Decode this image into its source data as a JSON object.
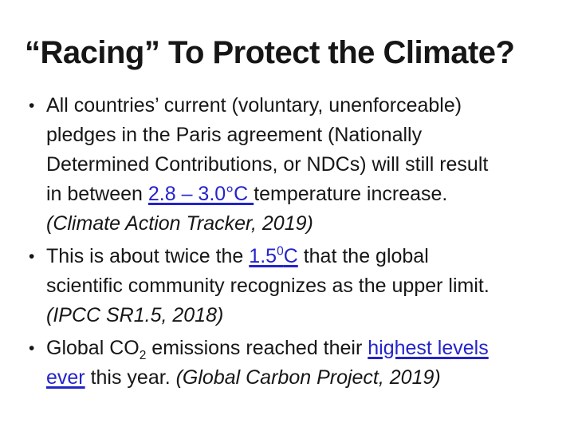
{
  "slide": {
    "title": "“Racing” To Protect the Climate?",
    "bullet_char": "•",
    "colors": {
      "background": "#ffffff",
      "text": "#161616",
      "link": "#2424cb"
    },
    "bullets": [
      {
        "lines": [
          [
            {
              "t": "All countries’ current (voluntary, unenforceable)"
            }
          ],
          [
            {
              "t": "pledges in the Paris agreement (Nationally"
            }
          ],
          [
            {
              "t": "Determined Contributions, or NDCs) will still result"
            }
          ],
          [
            {
              "t": "in between "
            },
            {
              "t": "2.8 – 3.0°C ",
              "s": "link",
              "name": "link-temperature-range"
            },
            {
              "t": "temperature increase."
            }
          ],
          [
            {
              "t": "(Climate Action Tracker, 2019)",
              "s": "italic"
            }
          ]
        ]
      },
      {
        "lines": [
          [
            {
              "t": "This is about twice the "
            },
            {
              "t": "1.5",
              "s": "link",
              "name": "link-1-5-degrees"
            },
            {
              "t": "0",
              "s": "link sup",
              "name": "link-1-5-degrees"
            },
            {
              "t": "C",
              "s": "link",
              "name": "link-1-5-degrees"
            },
            {
              "t": " that the global"
            }
          ],
          [
            {
              "t": "scientific community recognizes as the upper limit."
            }
          ],
          [
            {
              "t": "(IPCC SR1.5, 2018)",
              "s": "italic"
            }
          ]
        ]
      },
      {
        "lines": [
          [
            {
              "t": "Global CO"
            },
            {
              "t": "2",
              "s": "sub"
            },
            {
              "t": " emissions reached their "
            },
            {
              "t": "highest levels",
              "s": "link",
              "name": "link-highest-levels-ever"
            }
          ],
          [
            {
              "t": "ever",
              "s": "link",
              "name": "link-highest-levels-ever"
            },
            {
              "t": " this year. "
            },
            {
              "t": "(Global Carbon Project, 2019)",
              "s": "italic"
            }
          ]
        ]
      }
    ]
  }
}
